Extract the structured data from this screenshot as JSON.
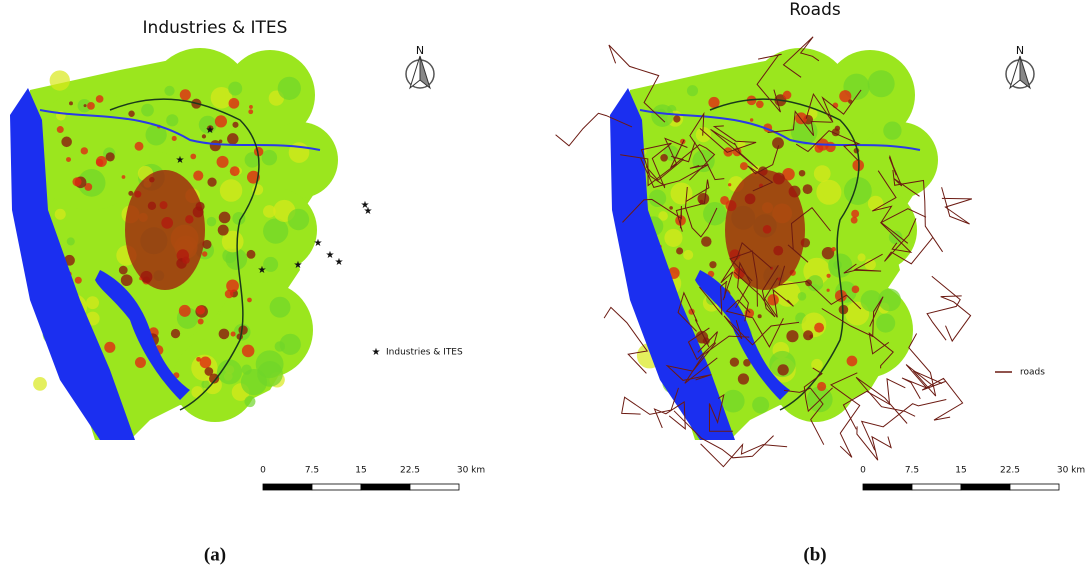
{
  "panels": [
    {
      "title": "Industries & ITES",
      "north": "N",
      "legend": "Industries & ITES",
      "scale_labels": [
        "0",
        "7.5",
        "15",
        "22.5",
        "30 km"
      ],
      "caption": "(a)"
    },
    {
      "title": "Roads",
      "north": "N",
      "legend": "roads",
      "scale_labels": [
        "0",
        "7.5",
        "15",
        "22.5",
        "30 km"
      ],
      "caption": "(b)"
    }
  ]
}
